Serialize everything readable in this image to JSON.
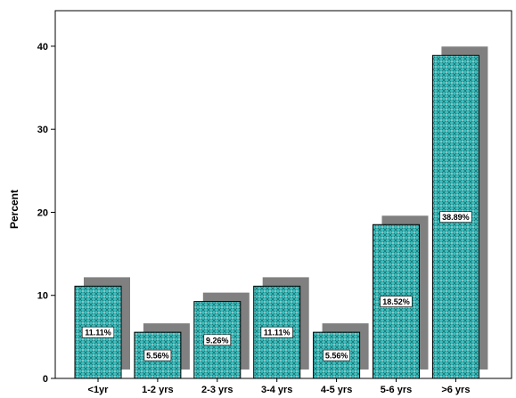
{
  "chart_data": {
    "type": "bar",
    "title": "",
    "xlabel": "",
    "ylabel": "Percent",
    "ylim": [
      0,
      44
    ],
    "yticks": [
      0,
      10,
      20,
      30,
      40
    ],
    "categories": [
      "<1yr",
      "1-2 yrs",
      "2-3 yrs",
      "3-4 yrs",
      "4-5 yrs",
      "5-6 yrs",
      ">6 yrs"
    ],
    "values": [
      11.11,
      5.56,
      9.26,
      11.11,
      5.56,
      18.52,
      38.89
    ],
    "data_labels": [
      "11.11%",
      "5.56%",
      "9.26%",
      "11.11%",
      "5.56%",
      "18.52%",
      "38.89%"
    ],
    "bar_color": "#3cbfbf",
    "bar_pattern": "crosshatch",
    "shadow_color": "#808080",
    "legend": "none",
    "grid": false
  }
}
